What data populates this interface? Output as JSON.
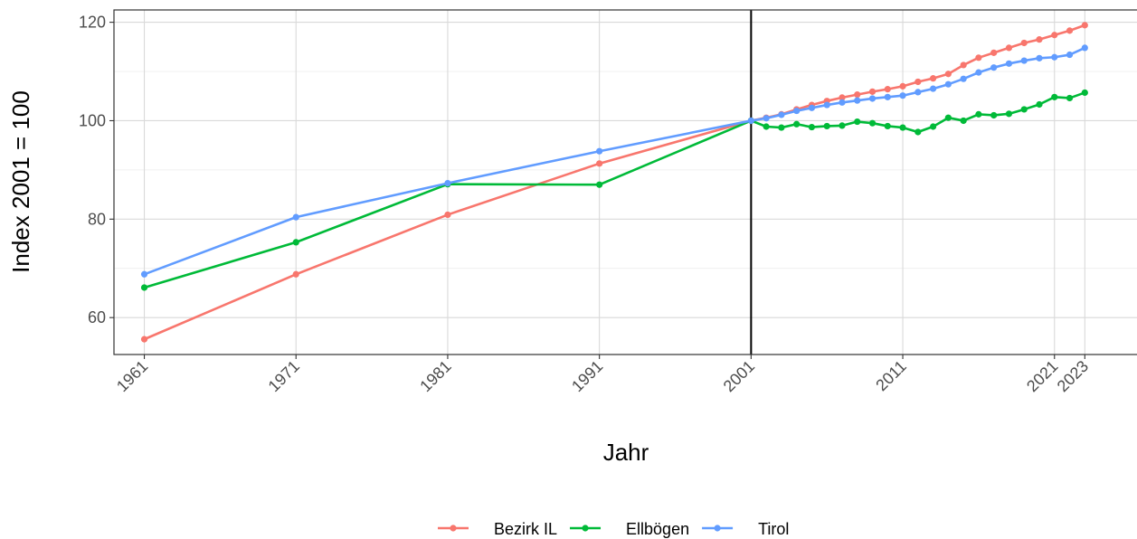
{
  "chart_data": {
    "type": "line",
    "xlabel": "Jahr",
    "ylabel": "Index 2001 = 100",
    "xlim": [
      1959,
      2026.5
    ],
    "ylim": [
      52.5,
      122.5
    ],
    "x_ticks": [
      1961,
      1971,
      1981,
      1991,
      2001,
      2011,
      2021,
      2023
    ],
    "y_ticks": [
      60,
      80,
      100,
      120
    ],
    "grid": true,
    "legend_position": "bottom",
    "vertical_reference_line": 2001,
    "series": [
      {
        "name": "Bezirk IL",
        "color": "#F8766D",
        "points": [
          [
            1961,
            55.6
          ],
          [
            1971,
            68.8
          ],
          [
            1981,
            80.9
          ],
          [
            1991,
            91.3
          ],
          [
            2001,
            100.0
          ],
          [
            2002,
            100.6
          ],
          [
            2003,
            101.3
          ],
          [
            2004,
            102.3
          ],
          [
            2005,
            103.2
          ],
          [
            2006,
            104.0
          ],
          [
            2007,
            104.7
          ],
          [
            2008,
            105.3
          ],
          [
            2009,
            105.9
          ],
          [
            2010,
            106.4
          ],
          [
            2011,
            107.0
          ],
          [
            2012,
            107.9
          ],
          [
            2013,
            108.6
          ],
          [
            2014,
            109.5
          ],
          [
            2015,
            111.3
          ],
          [
            2016,
            112.8
          ],
          [
            2017,
            113.8
          ],
          [
            2018,
            114.8
          ],
          [
            2019,
            115.8
          ],
          [
            2020,
            116.5
          ],
          [
            2021,
            117.4
          ],
          [
            2022,
            118.3
          ],
          [
            2023,
            119.4
          ]
        ]
      },
      {
        "name": "Ellbögen",
        "color": "#00BA38",
        "points": [
          [
            1961,
            66.1
          ],
          [
            1971,
            75.3
          ],
          [
            1981,
            87.1
          ],
          [
            1991,
            87.0
          ],
          [
            2001,
            100.0
          ],
          [
            2002,
            98.8
          ],
          [
            2003,
            98.6
          ],
          [
            2004,
            99.3
          ],
          [
            2005,
            98.7
          ],
          [
            2006,
            98.9
          ],
          [
            2007,
            99.0
          ],
          [
            2008,
            99.8
          ],
          [
            2009,
            99.5
          ],
          [
            2010,
            98.9
          ],
          [
            2011,
            98.6
          ],
          [
            2012,
            97.7
          ],
          [
            2013,
            98.8
          ],
          [
            2014,
            100.6
          ],
          [
            2015,
            100.0
          ],
          [
            2016,
            101.3
          ],
          [
            2017,
            101.1
          ],
          [
            2018,
            101.4
          ],
          [
            2019,
            102.3
          ],
          [
            2020,
            103.3
          ],
          [
            2021,
            104.8
          ],
          [
            2022,
            104.6
          ],
          [
            2023,
            105.7
          ]
        ]
      },
      {
        "name": "Tirol",
        "color": "#619CFF",
        "points": [
          [
            1961,
            68.8
          ],
          [
            1971,
            80.4
          ],
          [
            1981,
            87.3
          ],
          [
            1991,
            93.8
          ],
          [
            2001,
            100.0
          ],
          [
            2002,
            100.5
          ],
          [
            2003,
            101.2
          ],
          [
            2004,
            102.0
          ],
          [
            2005,
            102.6
          ],
          [
            2006,
            103.2
          ],
          [
            2007,
            103.7
          ],
          [
            2008,
            104.1
          ],
          [
            2009,
            104.5
          ],
          [
            2010,
            104.8
          ],
          [
            2011,
            105.1
          ],
          [
            2012,
            105.8
          ],
          [
            2013,
            106.5
          ],
          [
            2014,
            107.4
          ],
          [
            2015,
            108.5
          ],
          [
            2016,
            109.8
          ],
          [
            2017,
            110.8
          ],
          [
            2018,
            111.6
          ],
          [
            2019,
            112.2
          ],
          [
            2020,
            112.7
          ],
          [
            2021,
            112.9
          ],
          [
            2022,
            113.4
          ],
          [
            2023,
            114.8
          ]
        ]
      }
    ]
  }
}
